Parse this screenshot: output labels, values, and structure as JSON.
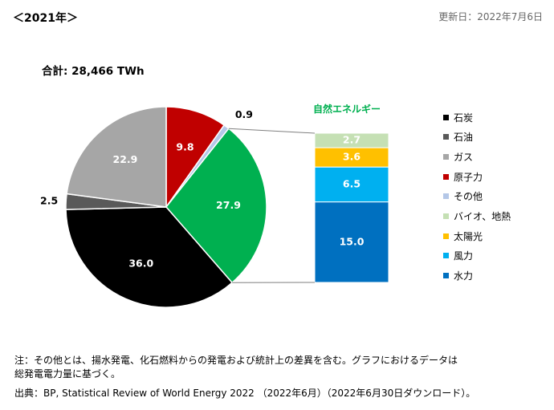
{
  "header": {
    "year_title": "＜2021年＞",
    "updated": "更新日：2022年7月6日",
    "total": "合計: 28,466 TWh"
  },
  "chart_data": [
    {
      "type": "pie",
      "categories": [
        "石炭",
        "石油",
        "ガス",
        "原子力",
        "その他",
        "自然エネルギー"
      ],
      "values": [
        36.0,
        2.5,
        22.9,
        9.8,
        0.9,
        27.9
      ],
      "labels": [
        "36.0",
        "2.5",
        "22.9",
        "9.8",
        "0.9",
        "27.9"
      ],
      "colors": [
        "#000000",
        "#595959",
        "#a6a6a6",
        "#c00000",
        "#b4c7e7",
        "#00b050"
      ]
    },
    {
      "type": "bar",
      "title": "自然エネルギー",
      "stacked": true,
      "categories": [
        "水力",
        "風力",
        "太陽光",
        "バイオ、地熱"
      ],
      "values": [
        15.0,
        6.5,
        3.6,
        2.7
      ],
      "labels": [
        "15.0",
        "6.5",
        "3.6",
        "2.7"
      ],
      "colors": [
        "#0070c0",
        "#00b0f0",
        "#ffc000",
        "#c5e0b4"
      ]
    }
  ],
  "legend": [
    {
      "label": "石炭",
      "color": "#000000"
    },
    {
      "label": "石油",
      "color": "#595959"
    },
    {
      "label": "ガス",
      "color": "#a6a6a6"
    },
    {
      "label": "原子力",
      "color": "#c00000"
    },
    {
      "label": "その他",
      "color": "#b4c7e7"
    },
    {
      "label": "バイオ、地熱",
      "color": "#c5e0b4"
    },
    {
      "label": "太陽光",
      "color": "#ffc000"
    },
    {
      "label": "風力",
      "color": "#00b0f0"
    },
    {
      "label": "水力",
      "color": "#0070c0"
    }
  ],
  "notes": {
    "note_line1": "注：その他とは、揚水発電、化石燃料からの発電および統計上の差異を含む。グラフにおけるデータは",
    "note_line2": "総発電電力量に基づく。",
    "source": "出典：BP, Statistical Review of World Energy 2022 （2022年6月）（2022年6月30日ダウンロード）。"
  }
}
